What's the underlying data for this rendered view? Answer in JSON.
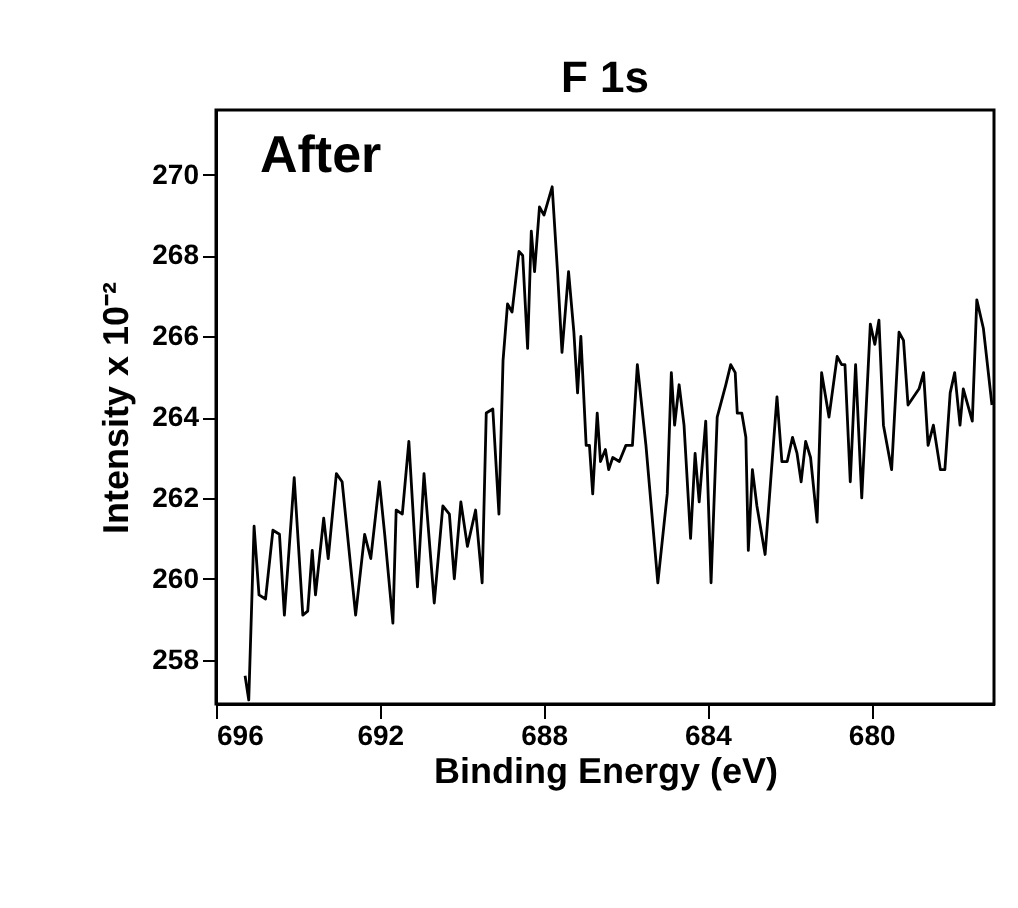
{
  "chart_data": {
    "type": "line",
    "title": "F 1s",
    "xlabel": "Binding Energy (eV)",
    "ylabel": "Intensity x 10⁻²",
    "annotations": [
      "After"
    ],
    "x": [
      695.29,
      695.2,
      695.07,
      694.95,
      694.79,
      694.61,
      694.45,
      694.33,
      694.09,
      693.88,
      693.76,
      693.65,
      693.57,
      693.37,
      693.26,
      693.06,
      692.92,
      692.59,
      692.37,
      692.22,
      692.01,
      691.88,
      691.68,
      691.6,
      691.45,
      691.29,
      691.08,
      690.92,
      690.67,
      690.46,
      690.3,
      690.18,
      690.02,
      689.86,
      689.66,
      689.5,
      689.4,
      689.24,
      689.09,
      688.99,
      688.88,
      688.77,
      688.6,
      688.51,
      688.39,
      688.3,
      688.22,
      688.1,
      687.99,
      687.79,
      687.66,
      687.55,
      687.39,
      687.26,
      687.17,
      687.09,
      686.96,
      686.88,
      686.8,
      686.69,
      686.61,
      686.49,
      686.41,
      686.31,
      686.15,
      685.99,
      685.83,
      685.71,
      685.5,
      685.21,
      684.98,
      684.88,
      684.8,
      684.69,
      684.57,
      684.41,
      684.3,
      684.2,
      684.04,
      683.91,
      683.76,
      683.55,
      683.43,
      683.32,
      683.27,
      683.16,
      683.06,
      683.0,
      682.9,
      682.79,
      682.59,
      682.3,
      682.18,
      682.05,
      681.92,
      681.81,
      681.71,
      681.6,
      681.48,
      681.32,
      681.21,
      681.03,
      680.83,
      680.72,
      680.64,
      680.51,
      680.38,
      680.23,
      680.02,
      679.91,
      679.81,
      679.7,
      679.5,
      679.32,
      679.21,
      679.1,
      678.83,
      678.72,
      678.61,
      678.48,
      678.31,
      678.2,
      678.07,
      677.96,
      677.83,
      677.75,
      677.53,
      677.42,
      677.26,
      677.05
    ],
    "series": [
      {
        "color": "#000000",
        "values": [
          257.6,
          257.0,
          261.3,
          259.6,
          259.5,
          261.2,
          261.1,
          259.1,
          262.5,
          259.1,
          259.2,
          260.7,
          259.6,
          261.5,
          260.5,
          262.6,
          262.4,
          259.1,
          261.1,
          260.5,
          262.4,
          261.1,
          258.9,
          261.7,
          261.6,
          263.4,
          259.8,
          262.6,
          259.4,
          261.8,
          261.6,
          260.0,
          261.9,
          260.8,
          261.7,
          259.9,
          264.1,
          264.2,
          261.6,
          265.4,
          266.8,
          266.6,
          268.1,
          268.0,
          265.7,
          268.6,
          267.6,
          269.2,
          269.0,
          269.7,
          267.6,
          265.6,
          267.6,
          266.1,
          264.6,
          266.0,
          263.3,
          263.3,
          262.1,
          264.1,
          262.9,
          263.2,
          262.7,
          263.0,
          262.9,
          263.3,
          263.3,
          265.3,
          263.3,
          259.9,
          262.1,
          265.1,
          263.8,
          264.8,
          263.8,
          261.0,
          263.1,
          261.9,
          263.9,
          259.9,
          264.0,
          264.8,
          265.3,
          265.1,
          264.1,
          264.1,
          263.5,
          260.7,
          262.7,
          261.8,
          260.6,
          264.5,
          262.9,
          262.9,
          263.5,
          263.1,
          262.4,
          263.4,
          263.0,
          261.4,
          265.1,
          264.0,
          265.5,
          265.3,
          265.3,
          262.4,
          265.3,
          262.0,
          266.3,
          265.8,
          266.4,
          263.8,
          262.7,
          266.1,
          265.9,
          264.3,
          264.7,
          265.1,
          263.3,
          263.8,
          262.7,
          262.7,
          264.6,
          265.1,
          263.8,
          264.7,
          263.9,
          266.9,
          266.2,
          264.3
        ]
      }
    ],
    "xlim": [
      696,
      677
    ],
    "xticks": [
      696,
      692,
      688,
      684,
      680
    ],
    "ylim": [
      256.9,
      271.6
    ],
    "yticks": [
      258,
      260,
      262,
      264,
      266,
      268,
      270
    ],
    "grid": false,
    "marker": "none",
    "line_style": "solid"
  }
}
